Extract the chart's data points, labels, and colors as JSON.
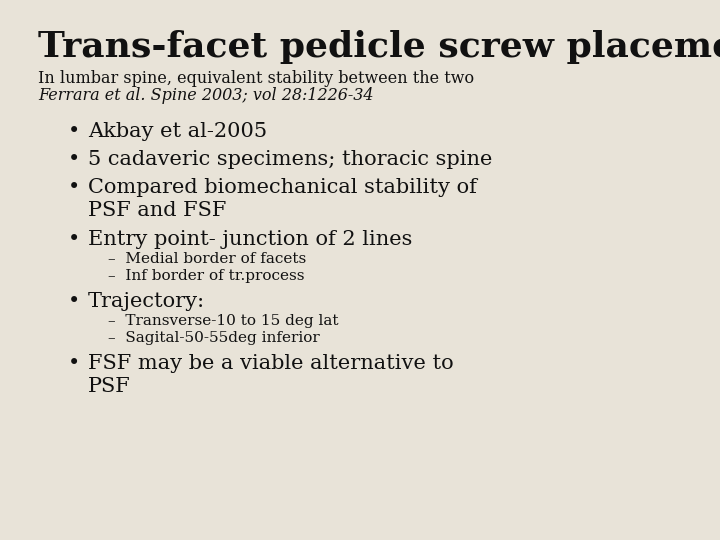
{
  "background_color": "#e8e3d8",
  "title": "Trans-facet pedicle screw placement",
  "subtitle_line1": "In lumbar spine, equivalent stability between the two",
  "subtitle_line2": "Ferrara et al. Spine 2003; vol 28:1226-34",
  "title_fontsize": 26,
  "subtitle1_fontsize": 11.5,
  "subtitle2_fontsize": 11.5,
  "bullet_fontsize": 15,
  "sub_bullet_fontsize": 11,
  "text_color": "#111111",
  "bullets": [
    "Akbay et al-2005",
    "5 cadaveric specimens; thoracic spine",
    "Compared biomechanical stability of\nPSF and FSF",
    "Entry point- junction of 2 lines",
    "Trajectory:",
    "FSF may be a viable alternative to\nPSF"
  ],
  "sub_bullets_entry": [
    "–  Medial border of facets",
    "–  Inf border of tr.process"
  ],
  "sub_bullets_trajectory": [
    "–  Transverse-10 to 15 deg lat",
    "–  Sagital-50-55deg inferior"
  ]
}
